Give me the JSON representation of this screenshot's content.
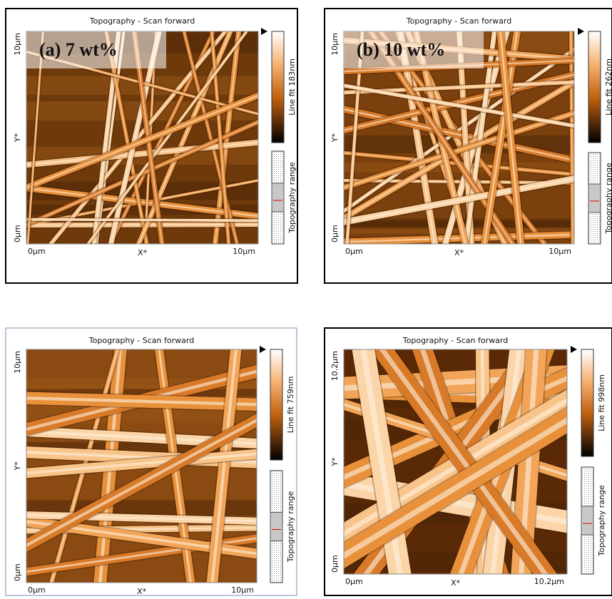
{
  "panels": [
    {
      "title": "Topography - Scan forward",
      "label": "(a) 7 wt%",
      "y_top": "10µm",
      "y_mid": "Y*",
      "y_bottom": "0µm",
      "x_left": "0µm",
      "x_mid": "X*",
      "x_right": "10µm",
      "colorbar_label": "Line fit 183nm",
      "range_label": "Topography range"
    },
    {
      "title": "Topography - Scan forward",
      "label": "(b) 10 wt%",
      "y_top": "10µm",
      "y_mid": "Y*",
      "y_bottom": "0µm",
      "x_left": "0µm",
      "x_mid": "X*",
      "x_right": "10µm",
      "colorbar_label": "Line fit 262nm",
      "range_label": "Topography range"
    },
    {
      "title": "Topography - Scan forward",
      "y_top": "10µm",
      "y_mid": "Y*",
      "y_bottom": "0µm",
      "x_left": "0µm",
      "x_mid": "X*",
      "x_right": "10µm",
      "colorbar_label": "Line fit 759nm",
      "range_label": "Topography range"
    },
    {
      "title": "Topography - Scan forward",
      "y_top": "10.2µm",
      "y_mid": "Y*",
      "y_bottom": "0µm",
      "x_left": "0µm",
      "x_mid": "X*",
      "x_right": "10.2µm",
      "colorbar_label": "Line fit 998nm",
      "range_label": "Topography range"
    }
  ]
}
